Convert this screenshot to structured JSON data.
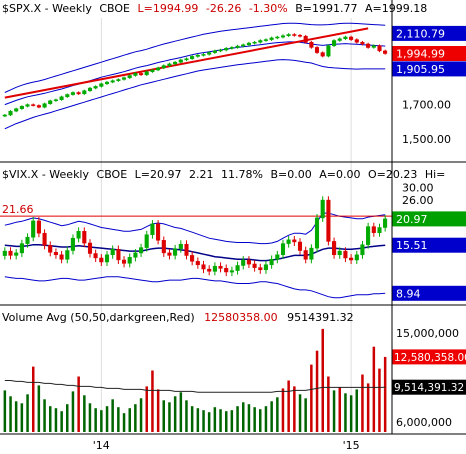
{
  "chart_data": [
    {
      "type": "candlestick",
      "header": {
        "symbol": "$SPX.X - Weekly",
        "exchange": "CBOE",
        "last": "L=1994.99",
        "change": "-26.26",
        "change_pct": "-1.30%",
        "bid": "B=1991.77",
        "ask": "A=1999.18"
      },
      "ylim": [
        1380,
        2200
      ],
      "y_ticks": [
        "1,500.00",
        "1,700.00"
      ],
      "value_badges": [
        {
          "label": "2,110.79",
          "value": 2110.79,
          "color": "#0000cc"
        },
        {
          "label": "1,994.99",
          "value": 1994.99,
          "color": "#ee0000"
        },
        {
          "label": "1,905.95",
          "value": 1905.95,
          "color": "#0000cc"
        }
      ],
      "close_series": [
        1640,
        1662,
        1676,
        1690,
        1700,
        1695,
        1685,
        1705,
        1722,
        1728,
        1745,
        1758,
        1770,
        1762,
        1780,
        1795,
        1805,
        1820,
        1830,
        1838,
        1845,
        1855,
        1868,
        1880,
        1872,
        1890,
        1900,
        1912,
        1925,
        1935,
        1945,
        1958,
        1965,
        1978,
        1985,
        1990,
        2000,
        2010,
        2015,
        2025,
        2030,
        2038,
        2045,
        2055,
        2060,
        2070,
        2075,
        2085,
        2090,
        2098,
        2105,
        2100,
        2095,
        2060,
        2030,
        2000,
        1980,
        2040,
        2070,
        2080,
        2090,
        2075,
        2060,
        2050,
        2030,
        2040,
        2010,
        1995
      ],
      "upper_band": [
        1770,
        1785,
        1800,
        1812,
        1822,
        1830,
        1836,
        1845,
        1855,
        1865,
        1875,
        1885,
        1895,
        1905,
        1915,
        1925,
        1935,
        1945,
        1955,
        1965,
        1975,
        1985,
        1995,
        2005,
        2012,
        2020,
        2030,
        2040,
        2050,
        2058,
        2066,
        2074,
        2082,
        2090,
        2098,
        2106,
        2112,
        2118,
        2124,
        2128,
        2132,
        2136,
        2140,
        2144,
        2148,
        2152,
        2156,
        2160,
        2164,
        2168,
        2170,
        2170,
        2168,
        2165,
        2162,
        2160,
        2160,
        2162,
        2165,
        2168,
        2170,
        2170,
        2168,
        2166,
        2164,
        2162,
        2160,
        2158
      ],
      "middle_band": [
        1700,
        1712,
        1724,
        1735,
        1745,
        1752,
        1758,
        1765,
        1774,
        1782,
        1790,
        1800,
        1810,
        1818,
        1828,
        1838,
        1848,
        1858,
        1866,
        1874,
        1882,
        1890,
        1900,
        1910,
        1918,
        1925,
        1934,
        1943,
        1950,
        1958,
        1965,
        1972,
        1980,
        1988,
        1995,
        2000,
        2005,
        2010,
        2015,
        2020,
        2025,
        2030,
        2034,
        2038,
        2042,
        2046,
        2050,
        2054,
        2058,
        2060,
        2062,
        2062,
        2060,
        2055,
        2050,
        2045,
        2042,
        2045,
        2048,
        2050,
        2052,
        2050,
        2048,
        2046,
        2044,
        2042,
        2040,
        2038
      ],
      "lower_band": [
        1560,
        1575,
        1590,
        1602,
        1614,
        1626,
        1636,
        1645,
        1654,
        1664,
        1674,
        1684,
        1694,
        1704,
        1714,
        1724,
        1734,
        1744,
        1754,
        1764,
        1774,
        1784,
        1794,
        1804,
        1814,
        1822,
        1830,
        1838,
        1846,
        1854,
        1862,
        1870,
        1878,
        1886,
        1894,
        1900,
        1905,
        1910,
        1915,
        1920,
        1925,
        1930,
        1934,
        1938,
        1942,
        1946,
        1950,
        1954,
        1958,
        1960,
        1958,
        1955,
        1950,
        1945,
        1940,
        1930,
        1920,
        1915,
        1912,
        1910,
        1908,
        1906,
        1905,
        1906,
        1906,
        1906,
        1906,
        1906
      ],
      "trendline": [
        [
          0,
          1740
        ],
        [
          64,
          2140
        ]
      ]
    },
    {
      "type": "candlestick",
      "header": {
        "symbol": "$VIX.X - Weekly",
        "exchange": "CBOE",
        "last": "L=20.97",
        "change": "2.21",
        "change_pct": "11.78%",
        "bid": "B=0.00",
        "ask": "A=0.00",
        "open": "O=20.23",
        "high": "Hi="
      },
      "ylim": [
        8,
        32
      ],
      "y_ticks": [
        "30.00",
        "26.00"
      ],
      "resistance_label": "21.66",
      "resistance_value": 21.66,
      "value_badges": [
        {
          "label": "20.97",
          "value": 20.97,
          "color": "#00a000"
        },
        {
          "label": "15.51",
          "value": 15.51,
          "color": "#0000cc"
        },
        {
          "label": "8.94",
          "value": 8.94,
          "color": "#0000cc"
        }
      ],
      "close_series": [
        14.5,
        13.8,
        14.2,
        15.8,
        17.0,
        20.5,
        17.8,
        15.5,
        14.3,
        13.9,
        13.2,
        14.6,
        16.8,
        18.2,
        15.9,
        14.1,
        13.4,
        12.8,
        13.9,
        14.8,
        13.1,
        12.6,
        13.5,
        14.2,
        15.1,
        17.5,
        19.8,
        16.4,
        14.2,
        13.8,
        14.9,
        15.7,
        13.8,
        12.9,
        12.4,
        11.8,
        11.5,
        12.2,
        11.9,
        11.4,
        11.6,
        12.3,
        13.1,
        12.5,
        12.0,
        11.7,
        12.4,
        13.2,
        13.9,
        15.8,
        16.5,
        16.1,
        14.6,
        13.2,
        15.0,
        21.2,
        26.0,
        16.2,
        13.9,
        14.5,
        13.4,
        13.1,
        13.9,
        15.6,
        19.2,
        17.9,
        19.0,
        20.97
      ],
      "upper_band": [
        19.5,
        19.8,
        20.2,
        20.4,
        20.8,
        21.2,
        21.0,
        20.6,
        20.2,
        19.8,
        19.4,
        19.6,
        20.0,
        20.4,
        20.2,
        19.8,
        19.4,
        19.0,
        18.8,
        18.6,
        18.4,
        18.2,
        18.2,
        18.4,
        18.6,
        19.2,
        19.8,
        20.0,
        19.8,
        19.4,
        19.0,
        18.8,
        18.4,
        18.0,
        17.6,
        17.2,
        16.8,
        16.6,
        16.4,
        16.2,
        16.1,
        16.0,
        16.0,
        16.0,
        15.9,
        15.8,
        15.8,
        15.9,
        16.2,
        16.8,
        17.4,
        17.8,
        17.8,
        17.6,
        18.4,
        20.2,
        22.4,
        22.4,
        22.0,
        21.6,
        21.4,
        21.2,
        21.0,
        21.0,
        21.4,
        21.6,
        21.8,
        22.0
      ],
      "middle_band": [
        15.5,
        15.4,
        15.3,
        15.3,
        15.4,
        15.6,
        15.6,
        15.5,
        15.4,
        15.3,
        15.2,
        15.2,
        15.3,
        15.4,
        15.3,
        15.2,
        15.1,
        15.0,
        14.9,
        14.8,
        14.7,
        14.6,
        14.5,
        14.5,
        14.5,
        14.7,
        14.9,
        15.0,
        15.0,
        14.9,
        14.8,
        14.7,
        14.6,
        14.4,
        14.2,
        14.0,
        13.8,
        13.6,
        13.5,
        13.4,
        13.3,
        13.2,
        13.2,
        13.2,
        13.1,
        13.0,
        13.0,
        13.1,
        13.2,
        13.4,
        13.6,
        13.8,
        13.8,
        13.8,
        14.0,
        14.4,
        14.8,
        15.0,
        15.0,
        14.9,
        14.8,
        14.8,
        14.9,
        15.0,
        15.2,
        15.3,
        15.4,
        15.51
      ],
      "lower_band": [
        10.8,
        10.7,
        10.6,
        10.6,
        10.5,
        10.4,
        10.3,
        10.3,
        10.4,
        10.5,
        10.6,
        10.6,
        10.5,
        10.4,
        10.4,
        10.5,
        10.6,
        10.7,
        10.8,
        10.8,
        10.8,
        10.7,
        10.6,
        10.5,
        10.4,
        10.3,
        10.2,
        10.2,
        10.3,
        10.4,
        10.4,
        10.4,
        10.5,
        10.6,
        10.6,
        10.5,
        10.4,
        10.3,
        10.3,
        10.2,
        10.1,
        10.0,
        10.0,
        10.0,
        10.1,
        10.2,
        10.2,
        10.1,
        10.0,
        9.8,
        9.6,
        9.4,
        9.3,
        9.3,
        9.2,
        9.0,
        8.8,
        8.6,
        8.5,
        8.5,
        8.6,
        8.7,
        8.8,
        8.8,
        8.8,
        8.9,
        8.9,
        8.94
      ]
    },
    {
      "type": "bar",
      "header": {
        "label": "Volume Avg (50,50,darkgreen,Red)",
        "value1": "12580358.00",
        "value2": "9514391.32"
      },
      "ylim": [
        5000000,
        16500000
      ],
      "y_ticks": [
        "15,000,000",
        "6,000,000"
      ],
      "value_badges": [
        {
          "label": "12,580,358.00",
          "value": 12580358,
          "color": "#ee0000"
        },
        {
          "label": "9,514,391.32",
          "value": 9514391.32,
          "color": "#000000"
        }
      ],
      "volume_millions": [
        9.2,
        8.6,
        8.1,
        7.9,
        8.8,
        11.6,
        9.7,
        8.3,
        7.6,
        7.4,
        7.1,
        7.8,
        9.1,
        10.6,
        8.7,
        7.9,
        7.4,
        7.2,
        7.6,
        8.3,
        7.5,
        6.9,
        7.4,
        7.8,
        8.4,
        9.6,
        11.2,
        9.3,
        8.2,
        8.0,
        8.6,
        9.0,
        8.2,
        7.6,
        7.4,
        7.2,
        7.0,
        7.5,
        7.3,
        7.1,
        7.2,
        7.6,
        8.0,
        7.8,
        7.5,
        7.3,
        7.6,
        8.1,
        8.5,
        9.4,
        10.2,
        9.6,
        8.8,
        8.4,
        11.8,
        13.2,
        15.4,
        10.6,
        9.2,
        9.5,
        8.9,
        8.7,
        9.3,
        10.8,
        9.9,
        13.6,
        11.4,
        12.58
      ],
      "average_series": [
        10.2,
        10.2,
        10.1,
        10.1,
        10.0,
        10.0,
        10.0,
        9.9,
        9.9,
        9.8,
        9.8,
        9.7,
        9.7,
        9.6,
        9.6,
        9.6,
        9.5,
        9.5,
        9.4,
        9.4,
        9.4,
        9.3,
        9.3,
        9.3,
        9.3,
        9.2,
        9.2,
        9.2,
        9.2,
        9.2,
        9.1,
        9.1,
        9.1,
        9.1,
        9.0,
        9.0,
        9.0,
        9.0,
        9.0,
        9.0,
        9.0,
        9.0,
        9.0,
        9.0,
        9.0,
        9.0,
        9.0,
        9.0,
        9.1,
        9.1,
        9.1,
        9.2,
        9.2,
        9.2,
        9.3,
        9.4,
        9.5,
        9.5,
        9.5,
        9.5,
        9.5,
        9.5,
        9.5,
        9.5,
        9.5,
        9.5,
        9.5,
        9.51
      ]
    }
  ],
  "x_axis": {
    "labels": [
      "'14",
      "'15"
    ],
    "label_index": [
      17,
      61
    ],
    "count": 68
  }
}
